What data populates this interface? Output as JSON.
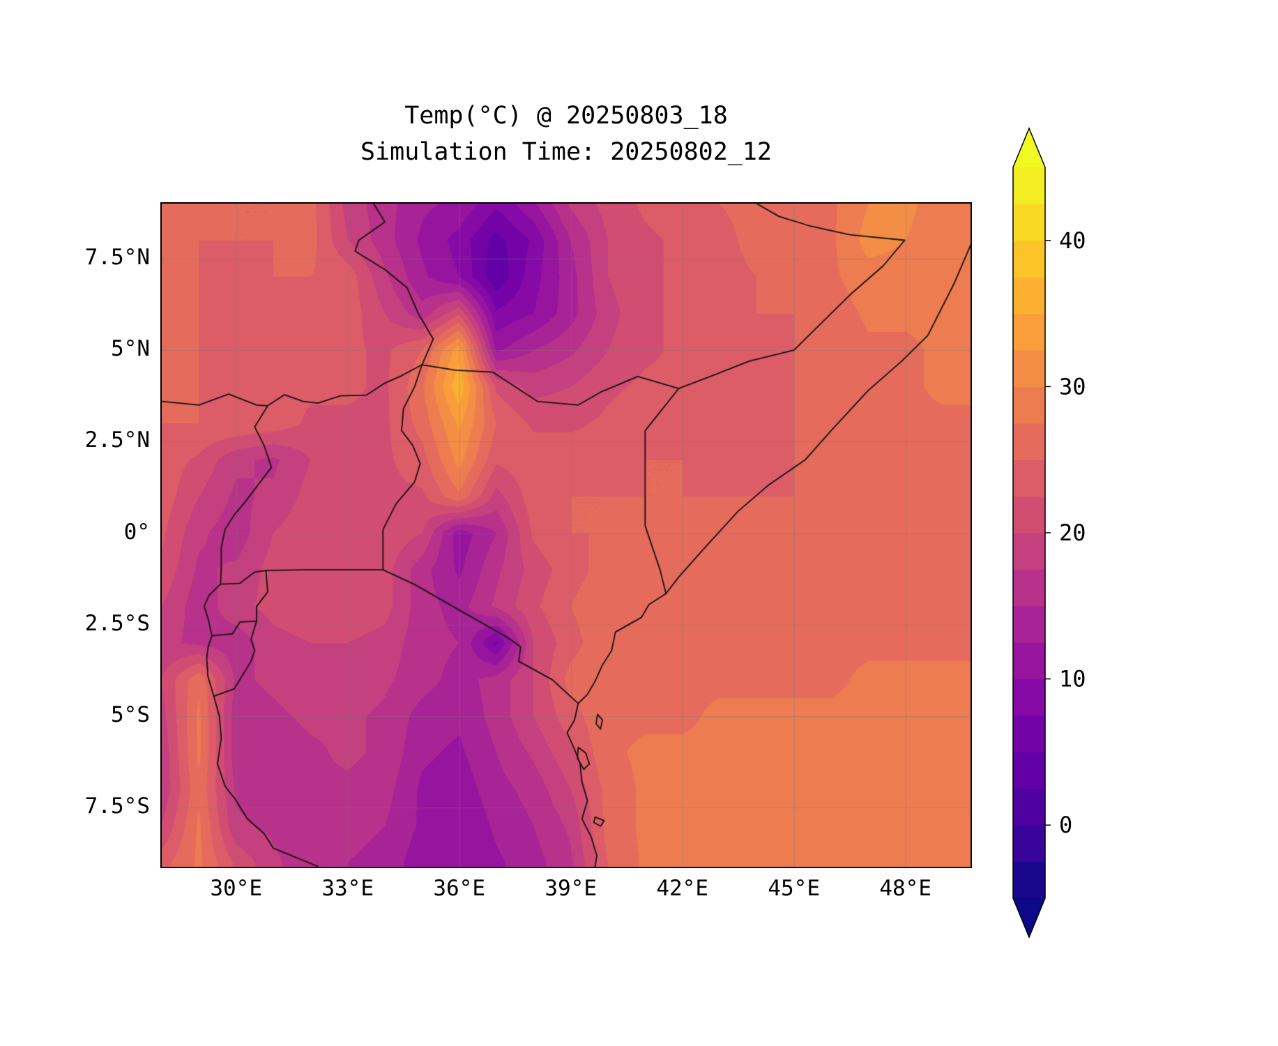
{
  "title": {
    "line1": "Temp(°C) @ 20250803_18",
    "line2": "Simulation Time: 20250802_12"
  },
  "axes": {
    "x_ticks": [
      {
        "lon": 30,
        "label": "30°E"
      },
      {
        "lon": 33,
        "label": "33°E"
      },
      {
        "lon": 36,
        "label": "36°E"
      },
      {
        "lon": 39,
        "label": "39°E"
      },
      {
        "lon": 42,
        "label": "42°E"
      },
      {
        "lon": 45,
        "label": "45°E"
      },
      {
        "lon": 48,
        "label": "48°E"
      }
    ],
    "y_ticks": [
      {
        "lat": 7.5,
        "label": "7.5°N"
      },
      {
        "lat": 5,
        "label": "5°N"
      },
      {
        "lat": 2.5,
        "label": "2.5°N"
      },
      {
        "lat": 0,
        "label": "0°"
      },
      {
        "lat": -2.5,
        "label": "2.5°S"
      },
      {
        "lat": -5,
        "label": "5°S"
      },
      {
        "lat": -7.5,
        "label": "7.5°S"
      }
    ]
  },
  "colorbar": {
    "vmin": -5,
    "vmax": 45,
    "step": 2.5,
    "ticks": [
      {
        "value": 0,
        "label": "0"
      },
      {
        "value": 10,
        "label": "10"
      },
      {
        "value": 20,
        "label": "20"
      },
      {
        "value": 30,
        "label": "30"
      },
      {
        "value": 40,
        "label": "40"
      }
    ],
    "band_colors": [
      "#1b078d",
      "#380499",
      "#4f02a1",
      "#6101a6",
      "#7303a7",
      "#860aa5",
      "#97149f",
      "#a82395",
      "#b8318a",
      "#c5407e",
      "#d14e72",
      "#dc5d67",
      "#e56c5c",
      "#ee7c51",
      "#f48d46",
      "#f99e3b",
      "#fcb032",
      "#fcc429",
      "#f9d924",
      "#f3ee22"
    ],
    "under_color": "#0d0887",
    "over_color": "#f0f921"
  },
  "chart_data": {
    "type": "heatmap",
    "title": "Temp(°C) @ 20250803_18",
    "subtitle": "Simulation Time: 20250802_12",
    "variable": "Temp",
    "units": "°C",
    "colormap": "plasma",
    "extent": {
      "lon_min": 28,
      "lon_max": 49.75,
      "lat_min": -9.11,
      "lat_max": 9.0
    },
    "lon": [
      28,
      29,
      30,
      31,
      32,
      33,
      34,
      35,
      36,
      37,
      38,
      39,
      40,
      41,
      42,
      43,
      44,
      45,
      46,
      47,
      48,
      49
    ],
    "lat": [
      9,
      8,
      7,
      6,
      5,
      4,
      3,
      2,
      1,
      0,
      -1,
      -2,
      -3,
      -4,
      -5,
      -6,
      -7,
      -8,
      -9
    ],
    "values": [
      [
        26,
        26,
        25,
        25,
        26,
        19,
        16,
        13,
        12,
        8,
        12,
        18,
        21,
        23,
        24,
        25,
        26,
        27,
        27,
        30,
        31,
        28
      ],
      [
        26,
        25,
        25,
        25,
        26,
        20,
        16,
        12,
        9,
        4,
        8,
        15,
        20,
        22,
        23,
        24,
        26,
        26,
        27,
        31,
        30,
        28
      ],
      [
        26,
        25,
        24,
        25,
        25,
        24,
        18,
        13,
        10,
        3,
        9,
        14,
        20,
        22,
        23,
        24,
        25,
        26,
        27,
        29,
        29,
        28
      ],
      [
        26,
        25,
        24,
        24,
        25,
        24,
        20,
        16,
        22,
        8,
        10,
        14,
        19,
        22,
        23,
        24,
        25,
        25,
        26,
        28,
        28,
        28
      ],
      [
        26,
        25,
        24,
        24,
        24,
        23,
        22,
        25,
        34,
        12,
        15,
        17,
        20,
        22,
        23,
        23,
        24,
        25,
        26,
        27,
        27,
        28
      ],
      [
        26,
        25,
        24,
        23,
        23,
        23,
        22,
        27,
        37,
        22,
        19,
        20,
        22,
        23,
        23,
        23,
        24,
        25,
        26,
        27,
        27,
        28
      ],
      [
        25,
        25,
        25,
        24,
        22,
        22,
        22,
        26,
        33,
        25,
        22,
        22,
        23,
        24,
        24,
        24,
        24,
        25,
        26,
        27,
        27,
        27
      ],
      [
        24,
        22,
        18,
        17,
        20,
        21,
        22,
        24,
        31,
        23,
        24,
        24,
        24,
        25,
        25,
        24,
        24,
        25,
        26,
        27,
        27,
        27
      ],
      [
        24,
        20,
        17,
        18,
        21,
        21,
        22,
        22,
        27,
        19,
        24,
        25,
        25,
        25,
        25,
        25,
        25,
        25,
        26,
        26,
        27,
        27
      ],
      [
        23,
        18,
        16,
        20,
        22,
        22,
        22,
        20,
        11,
        15,
        23,
        25,
        25,
        26,
        26,
        26,
        26,
        26,
        26,
        27,
        27,
        27
      ],
      [
        22,
        17,
        18,
        21,
        22,
        22,
        21,
        16,
        12,
        17,
        21,
        24,
        26,
        26,
        26,
        26,
        27,
        27,
        27,
        27,
        27,
        27
      ],
      [
        20,
        16,
        19,
        21,
        22,
        22,
        21,
        16,
        14,
        18,
        22,
        25,
        27,
        27,
        27,
        27,
        27,
        27,
        27,
        27,
        27,
        27
      ],
      [
        18,
        17,
        16,
        19,
        20,
        20,
        19,
        16,
        15,
        7,
        20,
        24,
        27,
        27,
        27,
        27,
        27,
        27,
        27,
        27,
        27,
        27
      ],
      [
        20,
        27,
        17,
        18,
        19,
        19,
        18,
        16,
        14,
        16,
        20,
        26,
        27,
        27,
        27,
        27,
        27,
        27,
        27,
        28,
        28,
        28
      ],
      [
        19,
        28,
        16,
        17,
        18,
        18,
        17,
        14,
        13,
        16,
        20,
        24,
        27,
        27,
        27,
        28,
        28,
        28,
        28,
        28,
        28,
        28
      ],
      [
        18,
        28,
        16,
        16,
        17,
        18,
        17,
        13,
        12,
        15,
        18,
        22,
        27,
        28,
        28,
        28,
        28,
        28,
        28,
        28,
        28,
        28
      ],
      [
        18,
        27,
        17,
        16,
        17,
        17,
        16,
        12,
        11,
        14,
        16,
        20,
        26,
        28,
        28,
        28,
        28,
        28,
        28,
        28,
        28,
        28
      ],
      [
        20,
        28,
        18,
        17,
        16,
        16,
        15,
        12,
        10,
        13,
        15,
        18,
        26,
        28,
        28,
        28,
        28,
        28,
        28,
        28,
        28,
        28
      ],
      [
        24,
        28,
        22,
        18,
        16,
        15,
        14,
        11,
        10,
        12,
        14,
        17,
        25,
        28,
        28,
        28,
        28,
        28,
        28,
        28,
        28,
        28
      ]
    ],
    "borders": [
      [
        [
          33.7,
          9.0
        ],
        [
          34.0,
          8.5
        ],
        [
          33.3,
          8.0
        ],
        [
          33.2,
          7.7
        ],
        [
          34.0,
          7.2
        ],
        [
          34.6,
          6.7
        ],
        [
          34.9,
          6.0
        ],
        [
          35.3,
          5.3
        ],
        [
          35.0,
          4.6
        ]
      ],
      [
        [
          35.0,
          4.6
        ],
        [
          35.9,
          4.45
        ],
        [
          36.9,
          4.4
        ],
        [
          38.1,
          3.6
        ],
        [
          39.2,
          3.5
        ],
        [
          39.8,
          3.85
        ],
        [
          40.8,
          4.28
        ],
        [
          41.9,
          3.95
        ]
      ],
      [
        [
          44.0,
          9.0
        ],
        [
          44.6,
          8.65
        ],
        [
          45.4,
          8.4
        ],
        [
          46.5,
          8.15
        ],
        [
          47.98,
          8.0
        ],
        [
          47.4,
          7.3
        ],
        [
          46.5,
          6.5
        ],
        [
          45.8,
          5.8
        ],
        [
          45.0,
          5.0
        ],
        [
          43.8,
          4.7
        ],
        [
          42.8,
          4.3
        ],
        [
          41.9,
          3.95
        ]
      ],
      [
        [
          41.9,
          3.95
        ],
        [
          41.0,
          2.8
        ],
        [
          41.0,
          0.2
        ],
        [
          41.4,
          -1.0
        ],
        [
          41.56,
          -1.65
        ]
      ],
      [
        [
          28.0,
          3.6
        ],
        [
          29.0,
          3.5
        ],
        [
          29.8,
          3.8
        ],
        [
          30.55,
          3.5
        ],
        [
          30.85,
          3.48
        ],
        [
          31.3,
          3.78
        ],
        [
          31.8,
          3.6
        ],
        [
          32.2,
          3.55
        ],
        [
          32.8,
          3.75
        ],
        [
          33.5,
          3.77
        ],
        [
          34.0,
          4.1
        ],
        [
          34.45,
          4.3
        ],
        [
          35.0,
          4.6
        ]
      ],
      [
        [
          35.0,
          4.6
        ],
        [
          34.8,
          4.0
        ],
        [
          34.5,
          3.4
        ],
        [
          34.45,
          2.8
        ],
        [
          34.75,
          2.4
        ],
        [
          34.95,
          1.9
        ],
        [
          34.8,
          1.4
        ],
        [
          34.55,
          1.1
        ],
        [
          34.3,
          0.8
        ],
        [
          34.1,
          0.4
        ],
        [
          33.95,
          0.1
        ],
        [
          33.95,
          -1.0
        ]
      ],
      [
        [
          33.95,
          -1.0
        ],
        [
          31.8,
          -1.0
        ],
        [
          30.8,
          -1.02
        ]
      ],
      [
        [
          33.95,
          -1.0
        ],
        [
          34.8,
          -1.4
        ],
        [
          36.0,
          -2.1
        ],
        [
          37.3,
          -2.85
        ],
        [
          37.65,
          -3.1
        ],
        [
          37.6,
          -3.5
        ],
        [
          38.5,
          -4.0
        ],
        [
          39.2,
          -4.65
        ]
      ],
      [
        [
          30.85,
          3.48
        ],
        [
          30.5,
          2.9
        ],
        [
          30.75,
          2.4
        ],
        [
          30.95,
          1.8
        ],
        [
          30.5,
          1.2
        ],
        [
          30.2,
          0.8
        ],
        [
          29.95,
          0.5
        ],
        [
          29.7,
          0.1
        ],
        [
          29.6,
          -0.4
        ],
        [
          29.6,
          -0.9
        ],
        [
          29.58,
          -1.39
        ]
      ],
      [
        [
          29.58,
          -1.39
        ],
        [
          30.1,
          -1.37
        ],
        [
          30.5,
          -1.06
        ],
        [
          30.8,
          -1.02
        ]
      ],
      [
        [
          30.8,
          -1.02
        ],
        [
          30.85,
          -1.6
        ],
        [
          30.55,
          -2.0
        ],
        [
          30.55,
          -2.4
        ],
        [
          30.4,
          -2.9
        ],
        [
          30.5,
          -3.2
        ],
        [
          30.4,
          -3.5
        ],
        [
          29.95,
          -4.25
        ],
        [
          29.4,
          -4.45
        ]
      ],
      [
        [
          29.58,
          -1.39
        ],
        [
          29.27,
          -1.7
        ],
        [
          29.14,
          -2.0
        ],
        [
          29.25,
          -2.35
        ],
        [
          29.35,
          -2.8
        ],
        [
          29.25,
          -3.1
        ],
        [
          29.21,
          -3.4
        ],
        [
          29.24,
          -3.9
        ],
        [
          29.4,
          -4.45
        ]
      ],
      [
        [
          30.55,
          -2.4
        ],
        [
          30.1,
          -2.43
        ],
        [
          29.9,
          -2.75
        ],
        [
          29.35,
          -2.8
        ]
      ],
      [
        [
          29.4,
          -4.45
        ],
        [
          29.55,
          -5.0
        ],
        [
          29.6,
          -5.6
        ],
        [
          29.5,
          -6.3
        ],
        [
          29.7,
          -6.9
        ],
        [
          30.0,
          -7.3
        ],
        [
          30.3,
          -7.8
        ],
        [
          30.75,
          -8.2
        ],
        [
          31.0,
          -8.6
        ],
        [
          31.6,
          -8.85
        ],
        [
          32.2,
          -9.1
        ]
      ]
    ],
    "coastline": [
      [
        49.85,
        8.1
      ],
      [
        49.3,
        6.8
      ],
      [
        48.6,
        5.4
      ],
      [
        47.9,
        4.7
      ],
      [
        47.0,
        3.9
      ],
      [
        46.0,
        2.8
      ],
      [
        45.3,
        2.0
      ],
      [
        44.3,
        1.3
      ],
      [
        43.5,
        0.6
      ],
      [
        42.6,
        -0.4
      ],
      [
        41.9,
        -1.2
      ],
      [
        41.56,
        -1.65
      ],
      [
        41.1,
        -1.95
      ],
      [
        40.9,
        -2.3
      ],
      [
        40.2,
        -2.7
      ],
      [
        40.1,
        -3.2
      ],
      [
        39.85,
        -3.6
      ],
      [
        39.65,
        -4.05
      ],
      [
        39.45,
        -4.4
      ],
      [
        39.2,
        -4.65
      ],
      [
        39.1,
        -5.1
      ],
      [
        38.9,
        -5.45
      ],
      [
        39.1,
        -5.9
      ],
      [
        39.25,
        -6.3
      ],
      [
        39.3,
        -6.8
      ],
      [
        39.45,
        -7.3
      ],
      [
        39.3,
        -7.8
      ],
      [
        39.55,
        -8.3
      ],
      [
        39.7,
        -8.8
      ],
      [
        39.65,
        -9.15
      ]
    ],
    "islands": [
      [
        [
          39.72,
          -4.95
        ],
        [
          39.85,
          -5.1
        ],
        [
          39.8,
          -5.35
        ],
        [
          39.68,
          -5.2
        ],
        [
          39.72,
          -4.95
        ]
      ],
      [
        [
          39.2,
          -5.85
        ],
        [
          39.4,
          -6.0
        ],
        [
          39.5,
          -6.3
        ],
        [
          39.35,
          -6.45
        ],
        [
          39.18,
          -6.15
        ],
        [
          39.2,
          -5.85
        ]
      ],
      [
        [
          39.65,
          -7.75
        ],
        [
          39.9,
          -7.85
        ],
        [
          39.8,
          -8.0
        ],
        [
          39.62,
          -7.9
        ],
        [
          39.65,
          -7.75
        ]
      ]
    ]
  }
}
